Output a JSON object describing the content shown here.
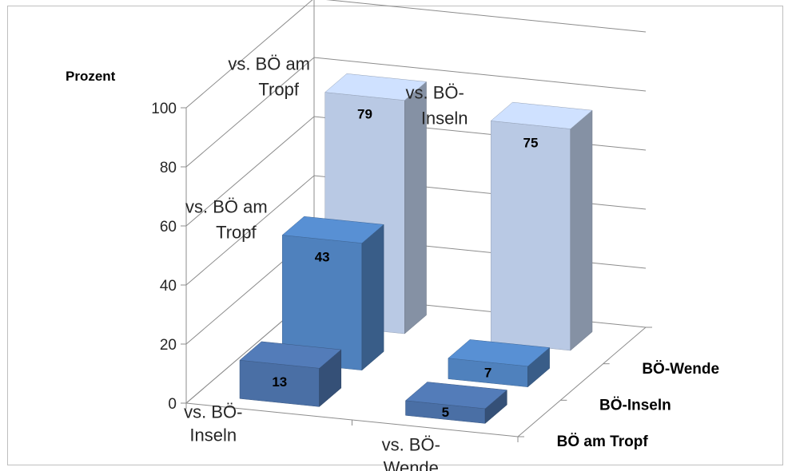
{
  "chart_data": {
    "type": "bar",
    "variant": "3d-column",
    "ylabel": "Prozent",
    "ylim": [
      0,
      100
    ],
    "yticks": [
      "0",
      "20",
      "40",
      "60",
      "80",
      "100"
    ],
    "grid": true,
    "categories": [
      {
        "label": [
          "vs. BÖ-",
          "Inseln"
        ]
      },
      {
        "label": [
          "vs. BÖ-",
          "Wende"
        ]
      }
    ],
    "series": [
      {
        "name": "BÖ am Tropf",
        "color": "#4a6fa5",
        "values": [
          13,
          5
        ]
      },
      {
        "name": "BÖ-Inseln",
        "color": "#4f81bd",
        "values": [
          43,
          7
        ]
      },
      {
        "name": "BÖ-Wende",
        "color": "#b9c9e4",
        "values": [
          79,
          75
        ]
      }
    ],
    "floating_labels": [
      {
        "text": [
          "vs. BÖ am",
          "Tropf"
        ],
        "series": 1,
        "category": 0
      },
      {
        "text": [
          "vs. BÖ am",
          "Tropf"
        ],
        "series": 2,
        "category": 0
      },
      {
        "text": [
          "vs. BÖ-",
          "Inseln"
        ],
        "series": 2,
        "category": 1
      }
    ]
  }
}
